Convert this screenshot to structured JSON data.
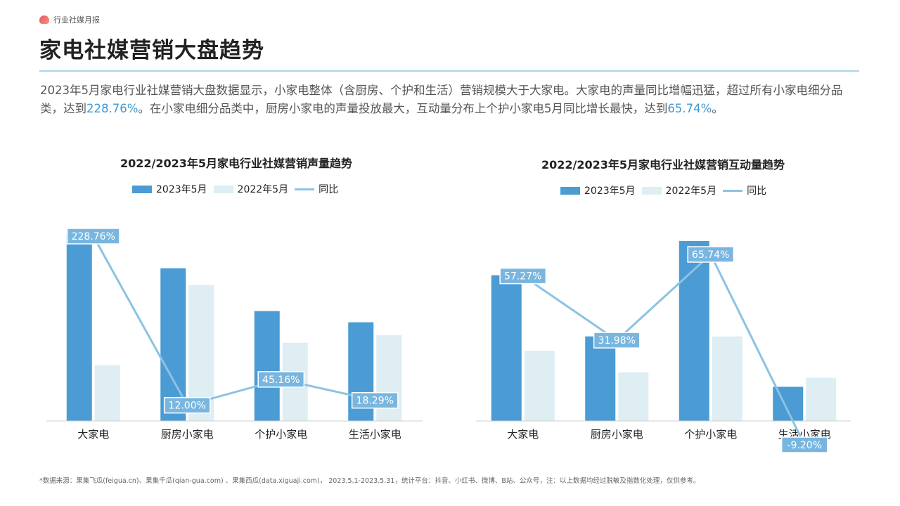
{
  "header": {
    "brand": "行业社媒月报",
    "title": "家电社媒营销大盘趋势"
  },
  "summary": {
    "part1": "2023年5月家电行业社媒营销大盘数据显示，小家电整体（含厨房、个护和生活）营销规模大于大家电。大家电的声量同比增幅迅猛，超过所有小家电细分品类，达到",
    "hl1": "228.76%",
    "part2": "。在小家电细分品类中，厨房小家电的声量投放最大，互动量分布上个护小家电5月同比增长最快，达到",
    "hl2": "65.74%",
    "part3": "。"
  },
  "colors": {
    "bar2023": "#4b9bd4",
    "bar2022": "#deeef3",
    "line": "#8cc3e2",
    "label_bg": "#79b6df"
  },
  "legend": {
    "s2023": "2023年5月",
    "s2022": "2022年5月",
    "yoy": "同比"
  },
  "chart_data": [
    {
      "type": "bar",
      "title": "2022/2023年5月家电行业社媒营销声量趋势",
      "categories": [
        "大家电",
        "厨房小家电",
        "个护小家电",
        "生活小家电"
      ],
      "series": [
        {
          "name": "2023年5月",
          "values": [
            100,
            82,
            59,
            53
          ]
        },
        {
          "name": "2022年5月",
          "values": [
            30,
            73,
            42,
            46
          ]
        }
      ],
      "line_series": {
        "name": "同比",
        "values": [
          228.76,
          12.0,
          45.16,
          18.29
        ],
        "labels": [
          "228.76%",
          "12.00%",
          "45.16%",
          "18.29%"
        ]
      },
      "ylim": [
        0,
        100
      ],
      "line_ylim": [
        0,
        228.76
      ]
    },
    {
      "type": "bar",
      "title": "2022/2023年5月家电行业社媒营销互动量趋势",
      "categories": [
        "大家电",
        "厨房小家电",
        "个护小家电",
        "生活小家电"
      ],
      "series": [
        {
          "name": "2023年5月",
          "values": [
            81,
            47,
            100,
            19
          ]
        },
        {
          "name": "2022年5月",
          "values": [
            39,
            27,
            47,
            24
          ]
        }
      ],
      "line_series": {
        "name": "同比",
        "values": [
          57.27,
          31.98,
          65.74,
          -9.2
        ],
        "labels": [
          "57.27%",
          "31.98%",
          "65.74%",
          "-9.20%"
        ]
      },
      "ylim": [
        0,
        100
      ],
      "line_ylim": [
        -9.2,
        65.74
      ]
    }
  ],
  "footnote": "*数据来源：果集飞瓜(feigua.cn)、果集千瓜(qian-gua.com) 、果集西瓜(data.xiguaji.com)， 2023.5.1-2023.5.31，统计平台：抖音、小红书、微博、B站、公众号，注：以上数据均经过脱敏及指数化处理，仅供参考。"
}
